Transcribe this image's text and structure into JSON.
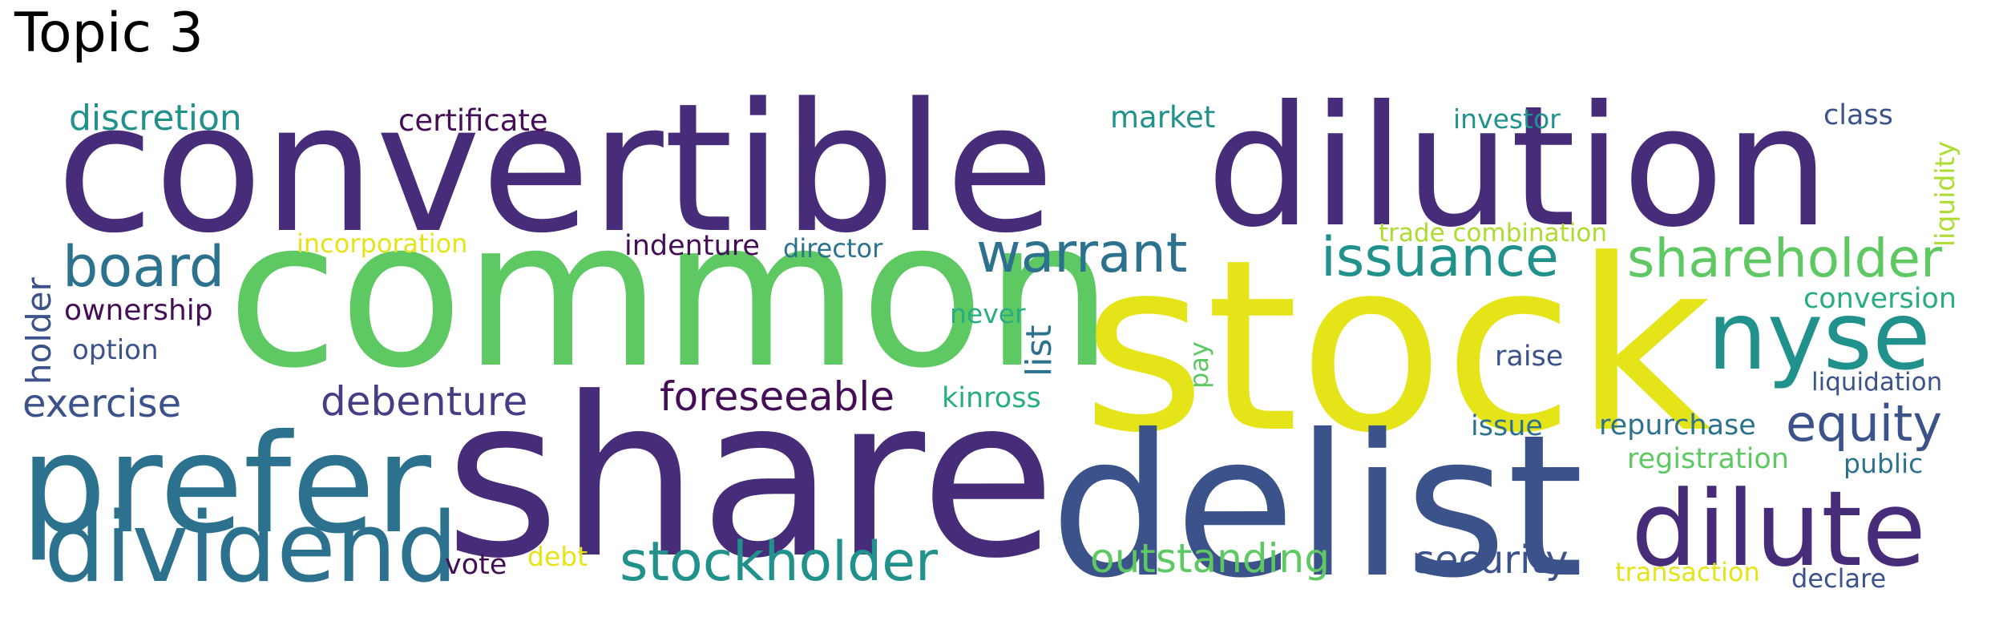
{
  "title": "Topic 3",
  "palette": {
    "dark_purple": "#472c7a",
    "deep_purple": "#440e57",
    "indigo": "#433e85",
    "blue": "#3b528b",
    "steel_blue": "#2c728e",
    "teal": "#21918c",
    "sea_green": "#27ad81",
    "green": "#5ec962",
    "lime": "#addc30",
    "yellow": "#e5e419"
  },
  "words": {
    "convertible": "convertible",
    "dilution": "dilution",
    "common": "common",
    "stock": "stock",
    "share": "share",
    "delist": "delist",
    "prefer": "prefer",
    "dividend": "dividend",
    "dilute": "dilute",
    "nyse": "nyse",
    "board": "board",
    "warrant": "warrant",
    "issuance": "issuance",
    "shareholder": "shareholder",
    "stockholder": "stockholder",
    "equity": "equity",
    "foreseeable": "foreseeable",
    "debenture": "debenture",
    "exercise": "exercise",
    "outstanding": "outstanding",
    "security": "security",
    "discretion": "discretion",
    "certificate": "certificate",
    "market": "market",
    "investor": "investor",
    "class": "class",
    "liquidity": "liquidity",
    "incorporation": "incorporation",
    "indenture": "indenture",
    "director": "director",
    "trade": "trade",
    "combination": "combination",
    "holder": "holder",
    "ownership": "ownership",
    "option": "option",
    "never": "never",
    "list": "list",
    "pay": "pay",
    "kinross": "kinross",
    "raise": "raise",
    "conversion": "conversion",
    "liquidation": "liquidation",
    "issue": "issue",
    "repurchase": "repurchase",
    "registration": "registration",
    "public": "public",
    "vote": "vote",
    "debt": "debt",
    "transaction": "transaction",
    "declare": "declare"
  }
}
